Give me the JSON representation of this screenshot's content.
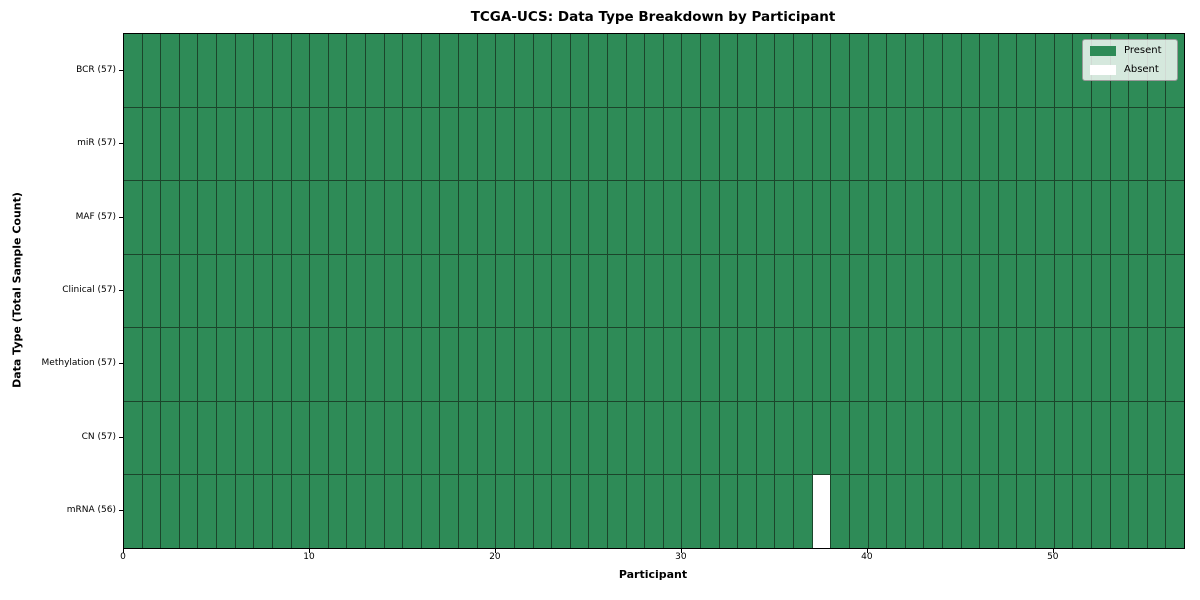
{
  "chart_data": {
    "type": "heatmap",
    "title": "TCGA-UCS: Data Type Breakdown by Participant",
    "xlabel": "Participant",
    "ylabel": "Data Type (Total Sample Count)",
    "xlim": [
      0,
      57
    ],
    "n_participants": 57,
    "x_ticks": [
      0,
      10,
      20,
      30,
      40,
      50
    ],
    "rows": [
      {
        "label": "BCR (57)",
        "data_type": "BCR",
        "present_count": 57,
        "absent_participants": []
      },
      {
        "label": "miR (57)",
        "data_type": "miR",
        "present_count": 57,
        "absent_participants": []
      },
      {
        "label": "MAF (57)",
        "data_type": "MAF",
        "present_count": 57,
        "absent_participants": []
      },
      {
        "label": "Clinical (57)",
        "data_type": "Clinical",
        "present_count": 57,
        "absent_participants": []
      },
      {
        "label": "Methylation (57)",
        "data_type": "Methylation",
        "present_count": 57,
        "absent_participants": []
      },
      {
        "label": "CN (57)",
        "data_type": "CN",
        "present_count": 57,
        "absent_participants": []
      },
      {
        "label": "mRNA (56)",
        "data_type": "mRNA",
        "present_count": 56,
        "absent_participants": [
          37
        ]
      }
    ],
    "legend": [
      {
        "label": "Present",
        "color": "#2e8b57"
      },
      {
        "label": "Absent",
        "color": "#ffffff"
      }
    ],
    "legend_position": "upper right",
    "grid": true,
    "colors": {
      "present": "#2e8b57",
      "absent": "#ffffff",
      "cell_border": "#1b452b",
      "axes_border": "#000000"
    }
  }
}
